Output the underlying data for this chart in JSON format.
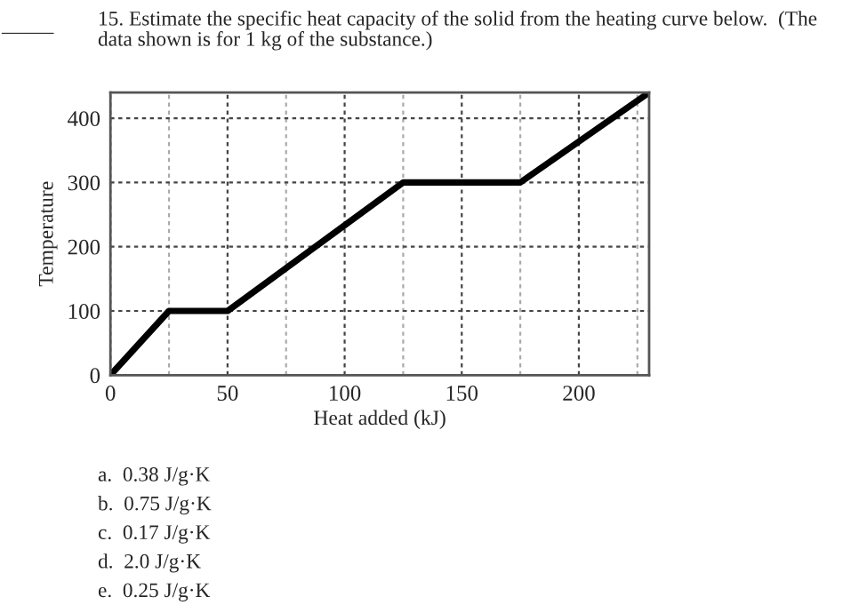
{
  "chart_data": {
    "type": "line",
    "title": "15. Estimate the specific heat capacity of the solid from the heating curve below.  (The data shown is for 1 kg of the substance.)",
    "xlabel": "Heat added (kJ)",
    "ylabel": "Temperature",
    "x": [
      0,
      25,
      50,
      125,
      175,
      230
    ],
    "series": [
      {
        "color": "#000000",
        "values": [
          0,
          100,
          100,
          300,
          300,
          440
        ]
      }
    ],
    "xlim": [
      0,
      230
    ],
    "ylim": [
      0,
      440
    ],
    "xticks": [
      0,
      {
        "value": 25,
        "label": null
      },
      50,
      {
        "value": 75,
        "label": null
      },
      100,
      {
        "value": 125,
        "label": null
      },
      150,
      {
        "value": 175,
        "label": null
      },
      200,
      {
        "value": 225,
        "label": null
      }
    ],
    "yticks": [
      0,
      100,
      200,
      300,
      400
    ],
    "grid": true,
    "marker": "none",
    "line_style": "solid",
    "legend": false,
    "annotations": [
      "_____",
      "a.  0.38 J/g·K",
      "b.  0.75 J/g·K",
      "c.  0.17 J/g·K",
      "d.  2.0 J/g·K",
      "e.  0.25 J/g·K"
    ]
  }
}
